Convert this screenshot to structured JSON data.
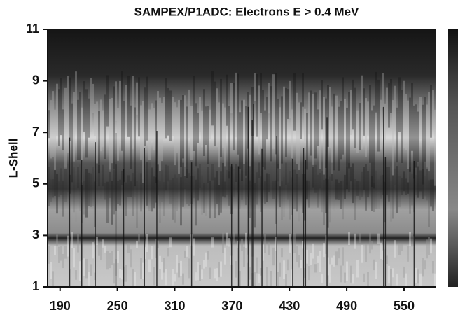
{
  "chart_data": {
    "type": "heatmap",
    "title": "SAMPEX/P1ADC: Electrons E > 0.4 MeV",
    "y_label": "L-Shell",
    "xlim": [
      177,
      583
    ],
    "xticks": [
      190,
      250,
      310,
      370,
      430,
      490,
      550
    ],
    "ylim": [
      1,
      11
    ],
    "yticks": [
      1,
      3,
      5,
      7,
      9,
      11
    ]
  }
}
